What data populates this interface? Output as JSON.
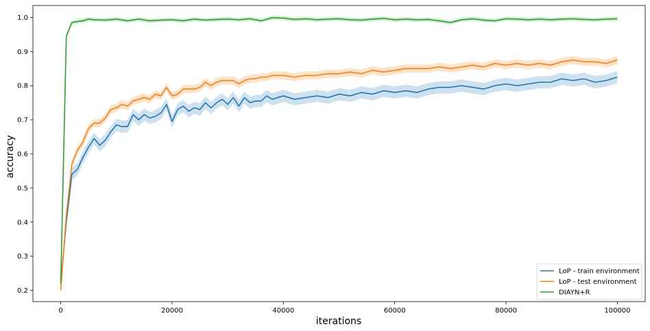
{
  "chart_data": {
    "type": "line",
    "title": "",
    "xlabel": "iterations",
    "ylabel": "accuracy",
    "xlim": [
      -5000,
      105000
    ],
    "ylim": [
      0.167,
      1.035
    ],
    "xticks": [
      0,
      20000,
      40000,
      60000,
      80000,
      100000
    ],
    "xtick_labels": [
      "0",
      "20000",
      "40000",
      "60000",
      "80000",
      "100000"
    ],
    "yticks": [
      0.2,
      0.3,
      0.4,
      0.5,
      0.6,
      0.7,
      0.8,
      0.9,
      1.0
    ],
    "ytick_labels": [
      "0.2",
      "0.3",
      "0.4",
      "0.5",
      "0.6",
      "0.7",
      "0.8",
      "0.9",
      "1.0"
    ],
    "grid": false,
    "legend_position": "bottom-right",
    "series": [
      {
        "name": "LoP - train environment",
        "color": "#1f77b4",
        "x": [
          0,
          1000,
          2000,
          3000,
          4000,
          5000,
          6000,
          7000,
          8000,
          9000,
          10000,
          11000,
          12000,
          13000,
          14000,
          15000,
          16000,
          17000,
          18000,
          19000,
          20000,
          21000,
          22000,
          23000,
          24000,
          25000,
          26000,
          27000,
          28000,
          29000,
          30000,
          31000,
          32000,
          33000,
          34000,
          35000,
          36000,
          37000,
          38000,
          39000,
          40000,
          42000,
          44000,
          46000,
          48000,
          50000,
          52000,
          54000,
          56000,
          58000,
          60000,
          62000,
          64000,
          66000,
          68000,
          70000,
          72000,
          74000,
          76000,
          78000,
          80000,
          82000,
          84000,
          86000,
          88000,
          90000,
          92000,
          94000,
          96000,
          98000,
          100000
        ],
        "y": [
          0.22,
          0.4,
          0.54,
          0.555,
          0.59,
          0.62,
          0.645,
          0.625,
          0.64,
          0.665,
          0.685,
          0.68,
          0.68,
          0.715,
          0.7,
          0.715,
          0.705,
          0.71,
          0.72,
          0.745,
          0.695,
          0.73,
          0.74,
          0.725,
          0.735,
          0.73,
          0.75,
          0.735,
          0.75,
          0.76,
          0.745,
          0.765,
          0.74,
          0.765,
          0.75,
          0.755,
          0.755,
          0.77,
          0.76,
          0.765,
          0.77,
          0.76,
          0.765,
          0.77,
          0.765,
          0.775,
          0.77,
          0.78,
          0.775,
          0.785,
          0.78,
          0.785,
          0.78,
          0.79,
          0.795,
          0.795,
          0.8,
          0.795,
          0.79,
          0.8,
          0.805,
          0.8,
          0.805,
          0.81,
          0.81,
          0.82,
          0.815,
          0.82,
          0.81,
          0.815,
          0.825
        ],
        "band": 0.018
      },
      {
        "name": "LoP - test environment",
        "color": "#ff7f0e",
        "x": [
          0,
          1000,
          2000,
          3000,
          4000,
          5000,
          6000,
          7000,
          8000,
          9000,
          10000,
          11000,
          12000,
          13000,
          14000,
          15000,
          16000,
          17000,
          18000,
          19000,
          20000,
          21000,
          22000,
          23000,
          24000,
          25000,
          26000,
          27000,
          28000,
          29000,
          30000,
          31000,
          32000,
          33000,
          34000,
          35000,
          36000,
          37000,
          38000,
          39000,
          40000,
          42000,
          44000,
          46000,
          48000,
          50000,
          52000,
          54000,
          56000,
          58000,
          60000,
          62000,
          64000,
          66000,
          68000,
          70000,
          72000,
          74000,
          76000,
          78000,
          80000,
          82000,
          84000,
          86000,
          88000,
          90000,
          92000,
          94000,
          96000,
          98000,
          100000
        ],
        "y": [
          0.2,
          0.42,
          0.57,
          0.61,
          0.635,
          0.675,
          0.69,
          0.69,
          0.705,
          0.73,
          0.735,
          0.745,
          0.74,
          0.755,
          0.76,
          0.765,
          0.76,
          0.775,
          0.77,
          0.795,
          0.77,
          0.775,
          0.79,
          0.79,
          0.79,
          0.795,
          0.81,
          0.8,
          0.81,
          0.815,
          0.815,
          0.815,
          0.805,
          0.815,
          0.82,
          0.82,
          0.825,
          0.825,
          0.83,
          0.83,
          0.83,
          0.825,
          0.83,
          0.83,
          0.835,
          0.835,
          0.84,
          0.835,
          0.845,
          0.84,
          0.845,
          0.85,
          0.85,
          0.85,
          0.855,
          0.85,
          0.855,
          0.86,
          0.855,
          0.865,
          0.86,
          0.865,
          0.86,
          0.865,
          0.86,
          0.87,
          0.875,
          0.87,
          0.87,
          0.865,
          0.875
        ],
        "band": 0.012
      },
      {
        "name": "DIAYN+R",
        "color": "#2ca02c",
        "x": [
          0,
          1000,
          2000,
          3000,
          4000,
          5000,
          6000,
          8000,
          10000,
          12000,
          14000,
          16000,
          18000,
          20000,
          22000,
          24000,
          26000,
          28000,
          30000,
          32000,
          34000,
          36000,
          38000,
          40000,
          42000,
          44000,
          46000,
          48000,
          50000,
          52000,
          54000,
          56000,
          58000,
          60000,
          62000,
          64000,
          66000,
          68000,
          70000,
          72000,
          74000,
          76000,
          78000,
          80000,
          82000,
          84000,
          86000,
          88000,
          90000,
          92000,
          94000,
          96000,
          98000,
          100000
        ],
        "y": [
          0.22,
          0.945,
          0.985,
          0.988,
          0.99,
          0.995,
          0.993,
          0.992,
          0.995,
          0.99,
          0.995,
          0.99,
          0.992,
          0.993,
          0.99,
          0.995,
          0.992,
          0.994,
          0.995,
          0.993,
          0.996,
          0.99,
          0.999,
          0.998,
          0.994,
          0.996,
          0.993,
          0.995,
          0.996,
          0.993,
          0.992,
          0.995,
          0.997,
          0.993,
          0.995,
          0.993,
          0.994,
          0.99,
          0.985,
          0.993,
          0.996,
          0.992,
          0.99,
          0.996,
          0.995,
          0.993,
          0.995,
          0.993,
          0.995,
          0.996,
          0.994,
          0.993,
          0.995,
          0.996
        ],
        "band": 0.006
      }
    ]
  }
}
